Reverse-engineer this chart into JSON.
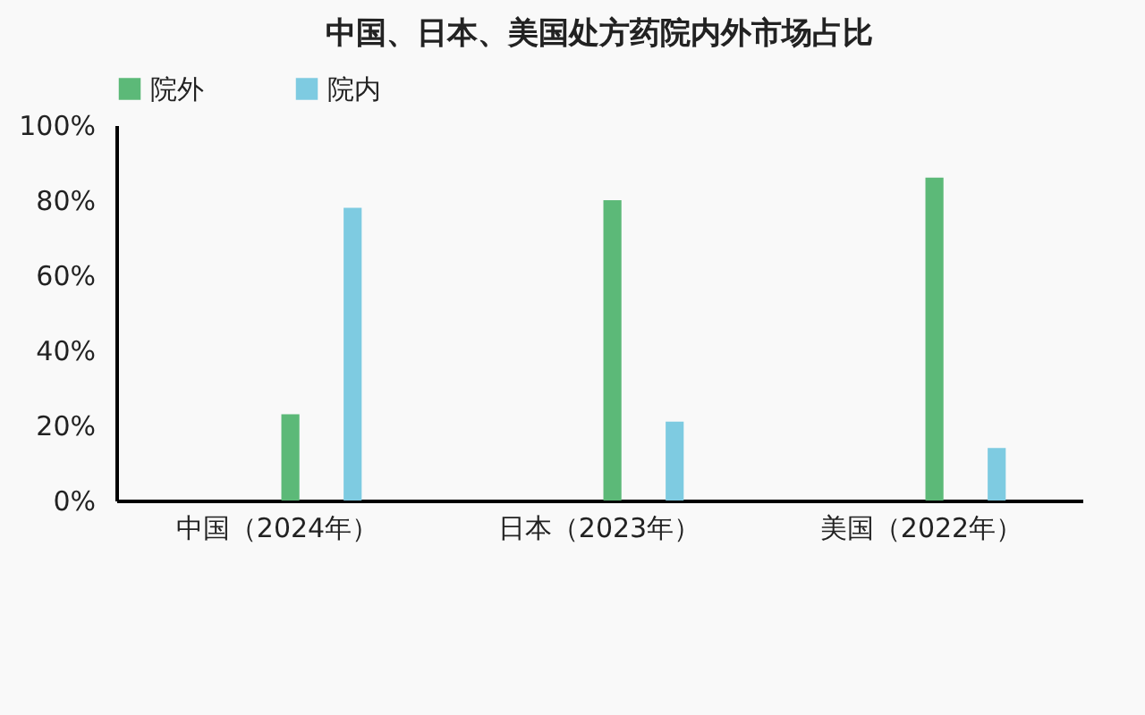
{
  "chart_data": {
    "type": "bar",
    "title": "中国、日本、美国处方药院内外市场占比",
    "categories": [
      "中国（2024年）",
      "日本（2023年）",
      "美国（2022年）"
    ],
    "series": [
      {
        "name": "院外",
        "color": "#5cb978",
        "values": [
          23,
          80,
          86
        ]
      },
      {
        "name": "院内",
        "color": "#7ecbe1",
        "values": [
          78,
          21,
          14
        ]
      }
    ],
    "ylim": [
      0,
      100
    ],
    "yticks": [
      {
        "value": 0,
        "label": "0%"
      },
      {
        "value": 20,
        "label": "20%"
      },
      {
        "value": 40,
        "label": "40%"
      },
      {
        "value": 60,
        "label": "60%"
      },
      {
        "value": 80,
        "label": "80%"
      },
      {
        "value": 100,
        "label": "100%"
      }
    ],
    "grid": false,
    "legend": "top"
  }
}
